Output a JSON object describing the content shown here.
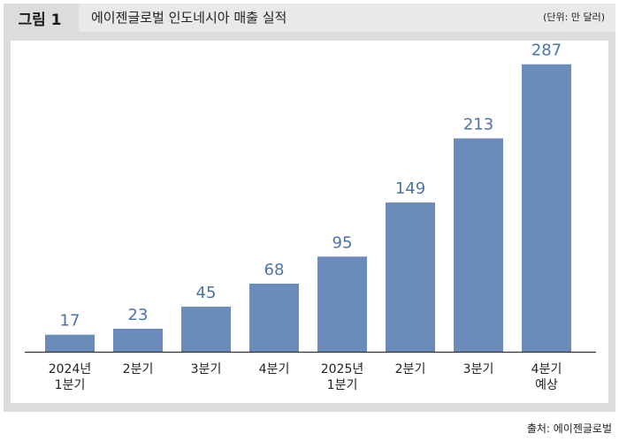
{
  "figure": {
    "label": "그림 1",
    "title": "에이젠글로벌 인도네시아 매출 실적",
    "unit": "(단위: 만 달러)",
    "source": "출처: 에이젠글로벌"
  },
  "colors": {
    "bar": "#6b8cba",
    "value_label": "#4a74a8",
    "axis": "#333333",
    "frame": "#dcdcdc",
    "title_bar": "#e9e9e9"
  },
  "chart_data": {
    "type": "bar",
    "title": "에이젠글로벌 인도네시아 매출 실적",
    "unit": "(단위: 만 달러)",
    "categories": [
      [
        "2024년",
        "1분기"
      ],
      [
        "2분기"
      ],
      [
        "3분기"
      ],
      [
        "4분기"
      ],
      [
        "2025년",
        "1분기"
      ],
      [
        "2분기"
      ],
      [
        "3분기"
      ],
      [
        "4분기",
        "예상"
      ]
    ],
    "values": [
      17,
      23,
      45,
      68,
      95,
      149,
      213,
      287
    ],
    "data_labels": [
      "17",
      "23",
      "45",
      "68",
      "95",
      "149",
      "213",
      "287"
    ],
    "ylim": [
      0,
      300
    ],
    "grid": false,
    "legend": "none"
  }
}
